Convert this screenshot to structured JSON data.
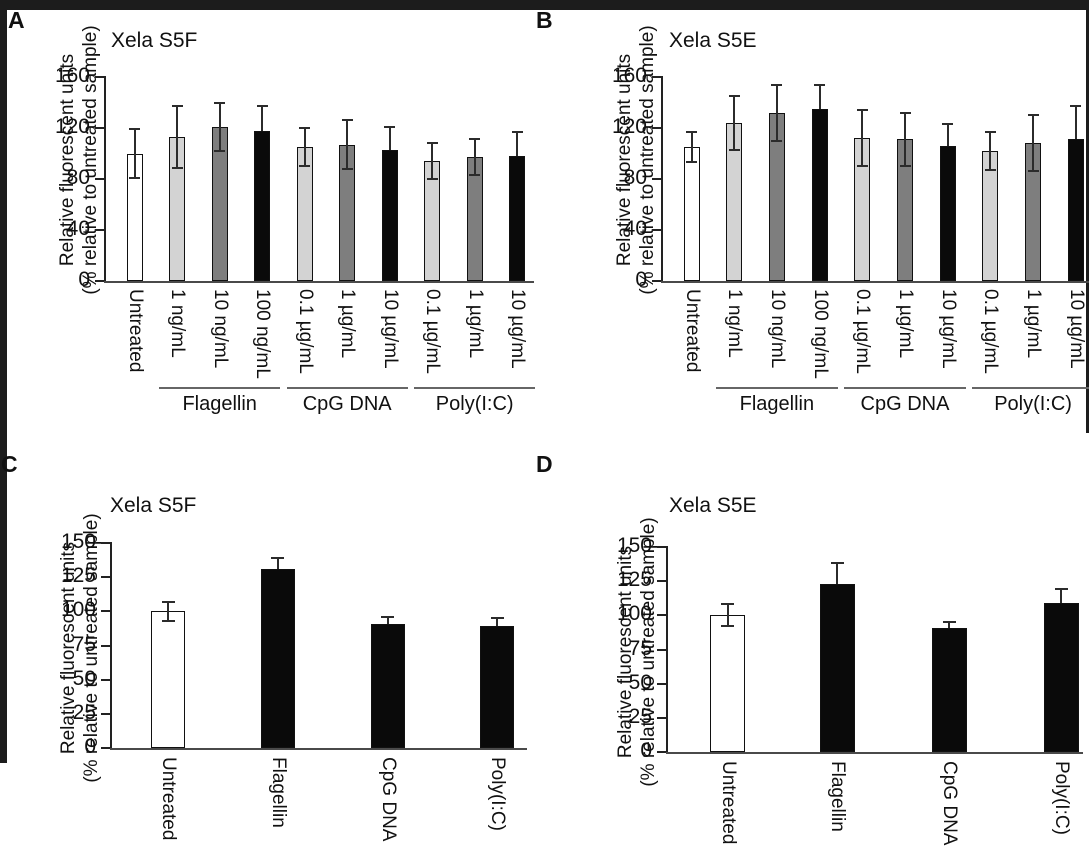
{
  "figure": {
    "background": "#ffffff",
    "frame_color": "#1c1c1c"
  },
  "palette": {
    "white": "#ffffff",
    "lightgray": "#d3d3d3",
    "gray": "#7e7e7e",
    "black": "#0a0a0a",
    "bar_border": "#111111",
    "error_bar": "#2b2b2b",
    "y_axis": "#222222",
    "x_axis": "#4a4a4a",
    "group_line": "#666666"
  },
  "chart_data": [
    {
      "panel": "A",
      "type": "bar",
      "title": "Xela S5F",
      "ylabel": [
        "Relative fluorescent units",
        "(% relative to untreated sample)"
      ],
      "ylim": [
        0,
        160
      ],
      "yticks": [
        0,
        40,
        80,
        120,
        160
      ],
      "grid": false,
      "categories": [
        "Untreated",
        "1 ng/mL",
        "10 ng/mL",
        "100 ng/mL",
        "0.1 µg/mL",
        "1 µg/mL",
        "10 µg/mL",
        "0.1 µg/mL",
        "1 µg/mL",
        "10 µg/mL"
      ],
      "values": [
        100,
        113,
        121,
        118,
        105,
        107,
        103,
        94,
        97,
        98
      ],
      "errors": [
        19,
        24,
        19,
        19,
        15,
        19,
        18,
        14,
        14,
        19
      ],
      "fills": [
        "white",
        "lightgray",
        "gray",
        "black",
        "lightgray",
        "gray",
        "black",
        "lightgray",
        "gray",
        "black"
      ],
      "groups": [
        {
          "label": "Flagellin",
          "from": 1,
          "to": 3
        },
        {
          "label": "CpG DNA",
          "from": 4,
          "to": 6
        },
        {
          "label": "Poly(I:C)",
          "from": 7,
          "to": 9
        }
      ]
    },
    {
      "panel": "B",
      "type": "bar",
      "title": "Xela S5E",
      "ylabel": [
        "Relative fluorescent units",
        "(% relative to untreated sample)"
      ],
      "ylim": [
        0,
        160
      ],
      "yticks": [
        0,
        40,
        80,
        120,
        160
      ],
      "grid": false,
      "categories": [
        "Untreated",
        "1 ng/mL",
        "10 ng/mL",
        "100 ng/mL",
        "0.1 µg/mL",
        "1 µg/mL",
        "10 µg/mL",
        "0.1 µg/mL",
        "1 µg/mL",
        "10 µg/mL"
      ],
      "values": [
        105,
        124,
        132,
        135,
        112,
        111,
        106,
        102,
        108,
        111
      ],
      "errors": [
        12,
        21,
        22,
        19,
        22,
        21,
        17,
        15,
        22,
        26
      ],
      "fills": [
        "white",
        "lightgray",
        "gray",
        "black",
        "lightgray",
        "gray",
        "black",
        "lightgray",
        "gray",
        "black"
      ],
      "groups": [
        {
          "label": "Flagellin",
          "from": 1,
          "to": 3
        },
        {
          "label": "CpG DNA",
          "from": 4,
          "to": 6
        },
        {
          "label": "Poly(I:C)",
          "from": 7,
          "to": 9
        }
      ]
    },
    {
      "panel": "C",
      "type": "bar",
      "title": "Xela S5F",
      "ylabel": [
        "Relative fluorescent units",
        "(% relative to untreated sample)"
      ],
      "ylim": [
        0,
        150
      ],
      "yticks": [
        0,
        25,
        50,
        75,
        100,
        125,
        150
      ],
      "grid": false,
      "categories": [
        "Untreated",
        "Flagellin",
        "CpG DNA",
        "Poly(I:C)"
      ],
      "values": [
        100,
        131,
        91,
        89
      ],
      "errors": [
        7,
        8,
        5,
        6
      ],
      "fills": [
        "white",
        "black",
        "black",
        "black"
      ],
      "groups": []
    },
    {
      "panel": "D",
      "type": "bar",
      "title": "Xela S5E",
      "ylabel": [
        "Relative fluorescent units",
        "(% relative to untreated sample)"
      ],
      "ylim": [
        0,
        150
      ],
      "yticks": [
        0,
        25,
        50,
        75,
        100,
        125,
        150
      ],
      "grid": false,
      "categories": [
        "Untreated",
        "Flagellin",
        "CpG DNA",
        "Poly(I:C)"
      ],
      "values": [
        100,
        123,
        91,
        109
      ],
      "errors": [
        8,
        15,
        4,
        10
      ],
      "fills": [
        "white",
        "black",
        "black",
        "black"
      ],
      "groups": []
    }
  ]
}
